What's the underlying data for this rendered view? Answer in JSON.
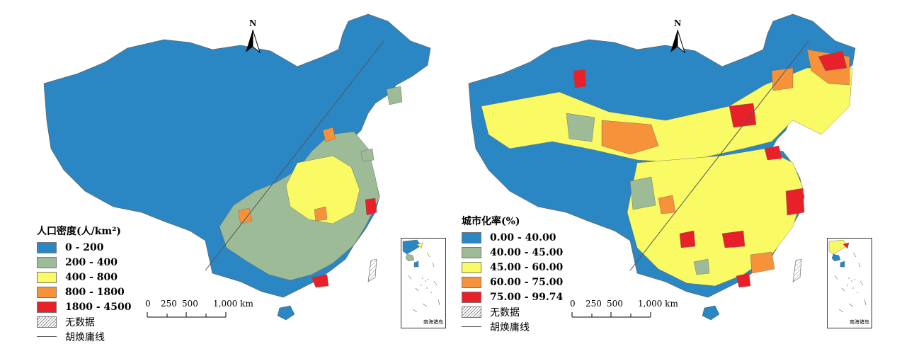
{
  "panels": [
    {
      "north_label": "N",
      "legend_title": "人口密度(人/km²)",
      "classes": [
        {
          "label": "0 - 200",
          "color": "#2b86c4"
        },
        {
          "label": "200 - 400",
          "color": "#9cbb96"
        },
        {
          "label": "400 - 800",
          "color": "#fafa64"
        },
        {
          "label": "800 - 1800",
          "color": "#f5923a"
        },
        {
          "label": "1800 - 4500",
          "color": "#e8202a"
        }
      ],
      "no_data_label": "无数据",
      "line_label": "胡焕庸线",
      "scale_labels": [
        "0",
        "250",
        "500",
        "1,000 km"
      ],
      "inset_label": "南海诸岛"
    },
    {
      "north_label": "N",
      "legend_title": "城市化率(%)",
      "classes": [
        {
          "label": "0.00 - 40.00",
          "color": "#2b86c4"
        },
        {
          "label": "40.00 - 45.00",
          "color": "#9cbb96"
        },
        {
          "label": "45.00 - 60.00",
          "color": "#fafa64"
        },
        {
          "label": "60.00 - 75.00",
          "color": "#f5923a"
        },
        {
          "label": "75.00 - 99.74",
          "color": "#e8202a"
        }
      ],
      "no_data_label": "无数据",
      "line_label": "胡焕庸线",
      "scale_labels": [
        "0",
        "250",
        "500",
        "1,000 km"
      ],
      "inset_label": "南海诸岛"
    }
  ]
}
